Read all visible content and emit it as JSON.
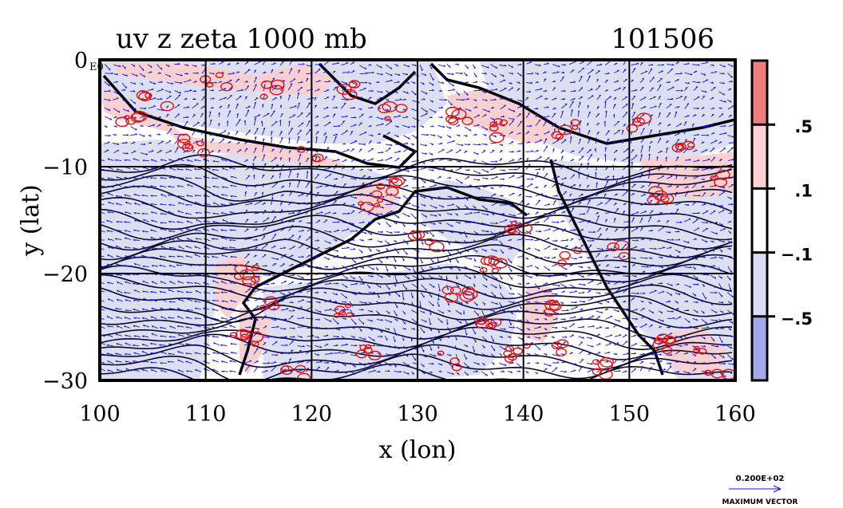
{
  "chart_data": {
    "type": "heatmap",
    "title": "uv z zeta 1000 mb",
    "date_label": "101506",
    "xlabel": "x (lon)",
    "ylabel": "y (lat)",
    "xlim": [
      100,
      160
    ],
    "ylim": [
      -30,
      0
    ],
    "x_ticks": [
      100,
      110,
      120,
      130,
      140,
      150,
      160
    ],
    "x_tick_labels": [
      "100",
      "110",
      "120",
      "130",
      "140",
      "150",
      "160"
    ],
    "y_ticks": [
      0,
      -10,
      -20,
      -30
    ],
    "y_tick_labels": [
      "0",
      "−10",
      "−20",
      "−30"
    ],
    "corner_label": "E0",
    "grid": true,
    "colorbar": {
      "levels": [
        ".5",
        ".1",
        "−.1",
        "−.5"
      ],
      "bins": [
        {
          "color": "#f07d7d"
        },
        {
          "color": "#fbd0d0"
        },
        {
          "color": "#ffffff"
        },
        {
          "color": "#d8dbf2"
        },
        {
          "color": "#a3a8ea"
        }
      ]
    },
    "vector_key": {
      "magnitude": "0.200E+02",
      "label": "MAXIMUM VECTOR"
    },
    "colors": {
      "positive_contour": "#e01010",
      "negative_vector": "#1010e0",
      "height_contour": "#0a0a28"
    }
  }
}
